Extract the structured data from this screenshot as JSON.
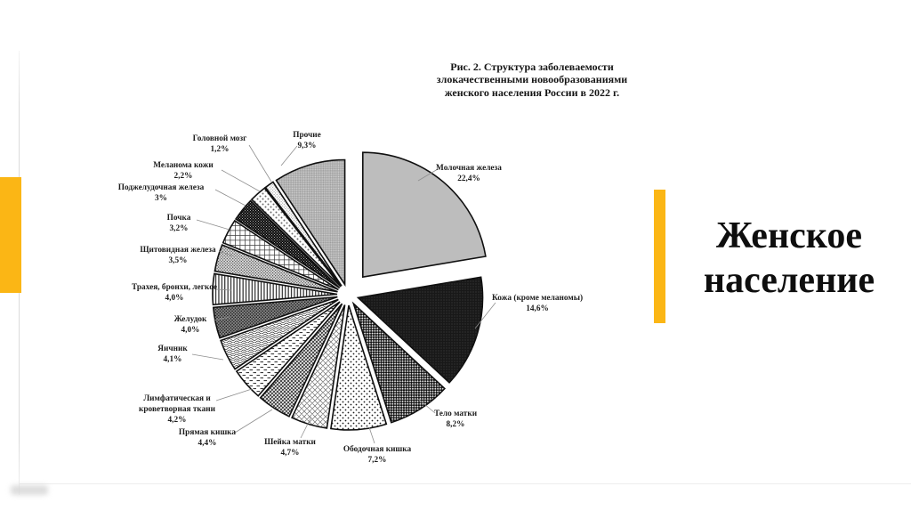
{
  "slide": {
    "section_title_lines": [
      "Женское",
      "население"
    ],
    "accent_color": "#FBB615"
  },
  "chart_data": {
    "type": "pie",
    "title": "Рис. 2. Структура заболеваемости злокачественными новообразованиями женского населения России в 2022 г.",
    "title_lines": [
      "Рис. 2. Структура заболеваемости",
      "злокачественными новообразованиями",
      "женского населения России в 2022 г."
    ],
    "unit": "percent",
    "value_format": "comma-decimal",
    "legend_position": "callout-labels",
    "start_angle": "12-oclock",
    "direction": "clockwise",
    "style": "exploded, black-and-white hatch patterns",
    "slices": [
      {
        "name": "Молочная железа",
        "label_lines": [
          "Молочная железа"
        ],
        "pct_label": "22,4%",
        "value": 22.4,
        "pattern": "solid-gray"
      },
      {
        "name": "Кожа (кроме меланомы)",
        "label_lines": [
          "Кожа (кроме меланомы)"
        ],
        "pct_label": "14,6%",
        "value": 14.6,
        "pattern": "black-speck"
      },
      {
        "name": "Тело матки",
        "label_lines": [
          "Тело матки"
        ],
        "pct_label": "8,2%",
        "value": 8.2,
        "pattern": "dark-weave"
      },
      {
        "name": "Ободочная кишка",
        "label_lines": [
          "Ободочная кишка"
        ],
        "pct_label": "7,2%",
        "value": 7.2,
        "pattern": "dots-sparse"
      },
      {
        "name": "Шейка матки",
        "label_lines": [
          "Шейка матки"
        ],
        "pct_label": "4,7%",
        "value": 4.7,
        "pattern": "diamond-light"
      },
      {
        "name": "Прямая кишка",
        "label_lines": [
          "Прямая кишка"
        ],
        "pct_label": "4,4%",
        "value": 4.4,
        "pattern": "diamond-dense"
      },
      {
        "name": "Лимфатическая и кроветворная ткани",
        "label_lines": [
          "Лимфатическая  и",
          "кроветворная ткани"
        ],
        "pct_label": "4,2%",
        "value": 4.2,
        "pattern": "dashes"
      },
      {
        "name": "Яичник",
        "label_lines": [
          "Яичник"
        ],
        "pct_label": "4,1%",
        "value": 4.1,
        "pattern": "waves"
      },
      {
        "name": "Желудок",
        "label_lines": [
          "Желудок"
        ],
        "pct_label": "4,0%",
        "value": 4.0,
        "pattern": "dark-speckle"
      },
      {
        "name": "Трахея, бронхи, легкое",
        "label_lines": [
          "Трахея, бронхи, легкое"
        ],
        "pct_label": "4,0%",
        "value": 4.0,
        "pattern": "vlines"
      },
      {
        "name": "Щитовидная железа",
        "label_lines": [
          "Щитовидная железа"
        ],
        "pct_label": "3,5%",
        "value": 3.5,
        "pattern": "scale-dots"
      },
      {
        "name": "Почка",
        "label_lines": [
          "Почка"
        ],
        "pct_label": "3,2%",
        "value": 3.2,
        "pattern": "grid"
      },
      {
        "name": "Поджелудочная железа",
        "label_lines": [
          "Поджелудочная железа"
        ],
        "pct_label": "3%",
        "value": 3.0,
        "pattern": "black-dotted"
      },
      {
        "name": "Меланома кожи",
        "label_lines": [
          "Меланома кожи"
        ],
        "pct_label": "2,2%",
        "value": 2.2,
        "pattern": "dots-diag"
      },
      {
        "name": "Головной мозг",
        "label_lines": [
          "Головной мозг"
        ],
        "pct_label": "1,2%",
        "value": 1.2,
        "pattern": "dots-fine"
      },
      {
        "name": "Прочие",
        "label_lines": [
          "Прочие"
        ],
        "pct_label": "9,3%",
        "value": 9.3,
        "pattern": "gray-dots"
      }
    ]
  }
}
